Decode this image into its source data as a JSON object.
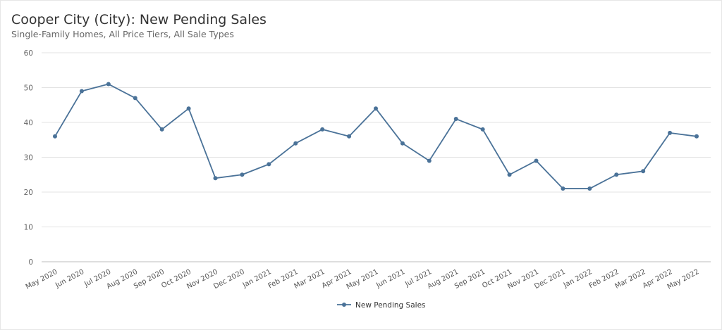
{
  "chart_data": {
    "type": "line",
    "title": "Cooper City (City): New Pending Sales",
    "subtitle": "Single-Family Homes, All Price Tiers, All Sale Types",
    "xlabel": "",
    "ylabel": "",
    "ylim": [
      0,
      60
    ],
    "yticks": [
      0,
      10,
      20,
      30,
      40,
      50,
      60
    ],
    "grid": true,
    "legend_position": "bottom-center",
    "categories": [
      "May 2020",
      "Jun 2020",
      "Jul 2020",
      "Aug 2020",
      "Sep 2020",
      "Oct 2020",
      "Nov 2020",
      "Dec 2020",
      "Jan 2021",
      "Feb 2021",
      "Mar 2021",
      "Apr 2021",
      "May 2021",
      "Jun 2021",
      "Jul 2021",
      "Aug 2021",
      "Sep 2021",
      "Oct 2021",
      "Nov 2021",
      "Dec 2021",
      "Jan 2022",
      "Feb 2022",
      "Mar 2022",
      "Apr 2022",
      "May 2022"
    ],
    "series": [
      {
        "name": "New Pending Sales",
        "color": "#4a7298",
        "values": [
          36,
          49,
          51,
          47,
          38,
          44,
          24,
          25,
          28,
          34,
          38,
          36,
          44,
          34,
          29,
          41,
          38,
          25,
          29,
          21,
          21,
          25,
          26,
          37,
          36
        ]
      }
    ]
  }
}
